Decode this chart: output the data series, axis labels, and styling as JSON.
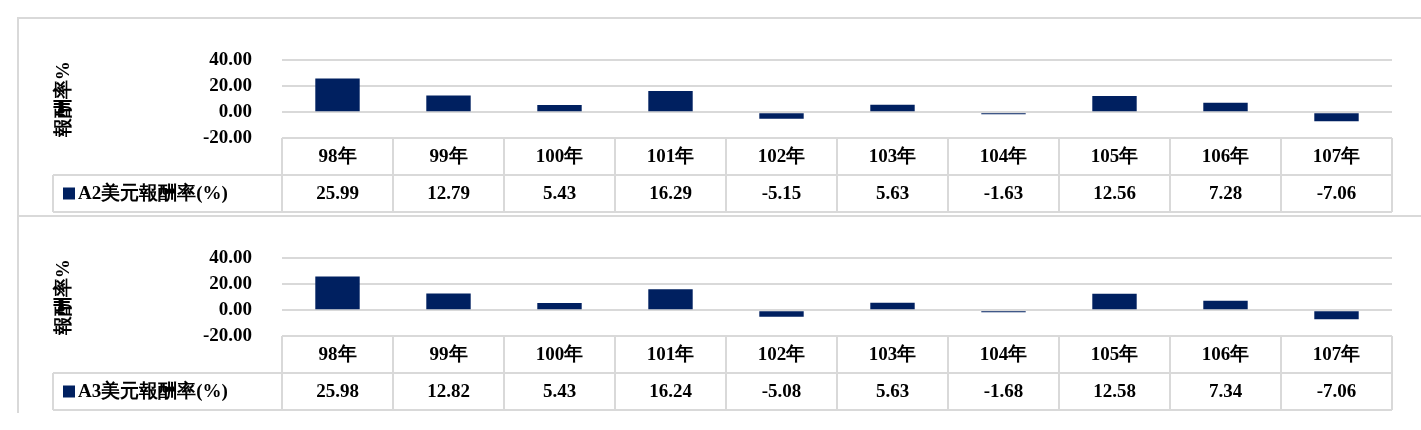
{
  "chart_data": [
    {
      "type": "bar",
      "ylabel": "報酬率%",
      "categories": [
        "98年",
        "99年",
        "100年",
        "101年",
        "102年",
        "103年",
        "104年",
        "105年",
        "106年",
        "107年"
      ],
      "series": [
        {
          "name": "A2美元報酬率(%)",
          "color": "#002060",
          "values": [
            25.99,
            12.79,
            5.43,
            16.29,
            -5.15,
            5.63,
            -1.63,
            12.56,
            7.28,
            -7.06
          ]
        }
      ],
      "ylim": [
        -20,
        40
      ],
      "yticks": [
        {
          "value": -20,
          "label": "-20.00"
        },
        {
          "value": 0,
          "label": "0.00"
        },
        {
          "value": 20,
          "label": "20.00"
        },
        {
          "value": 40,
          "label": "40.00"
        }
      ],
      "grid": "y",
      "data_labels": true
    },
    {
      "type": "bar",
      "ylabel": "報酬率%",
      "categories": [
        "98年",
        "99年",
        "100年",
        "101年",
        "102年",
        "103年",
        "104年",
        "105年",
        "106年",
        "107年"
      ],
      "series": [
        {
          "name": "A3美元報酬率(%)",
          "color": "#002060",
          "values": [
            25.98,
            12.82,
            5.43,
            16.24,
            -5.08,
            5.63,
            -1.68,
            12.58,
            7.34,
            -7.06
          ]
        }
      ],
      "ylim": [
        -20,
        40
      ],
      "yticks": [
        {
          "value": -20,
          "label": "-20.00"
        },
        {
          "value": 0,
          "label": "0.00"
        },
        {
          "value": 20,
          "label": "20.00"
        },
        {
          "value": 40,
          "label": "40.00"
        }
      ],
      "grid": "y",
      "data_labels": true
    }
  ]
}
